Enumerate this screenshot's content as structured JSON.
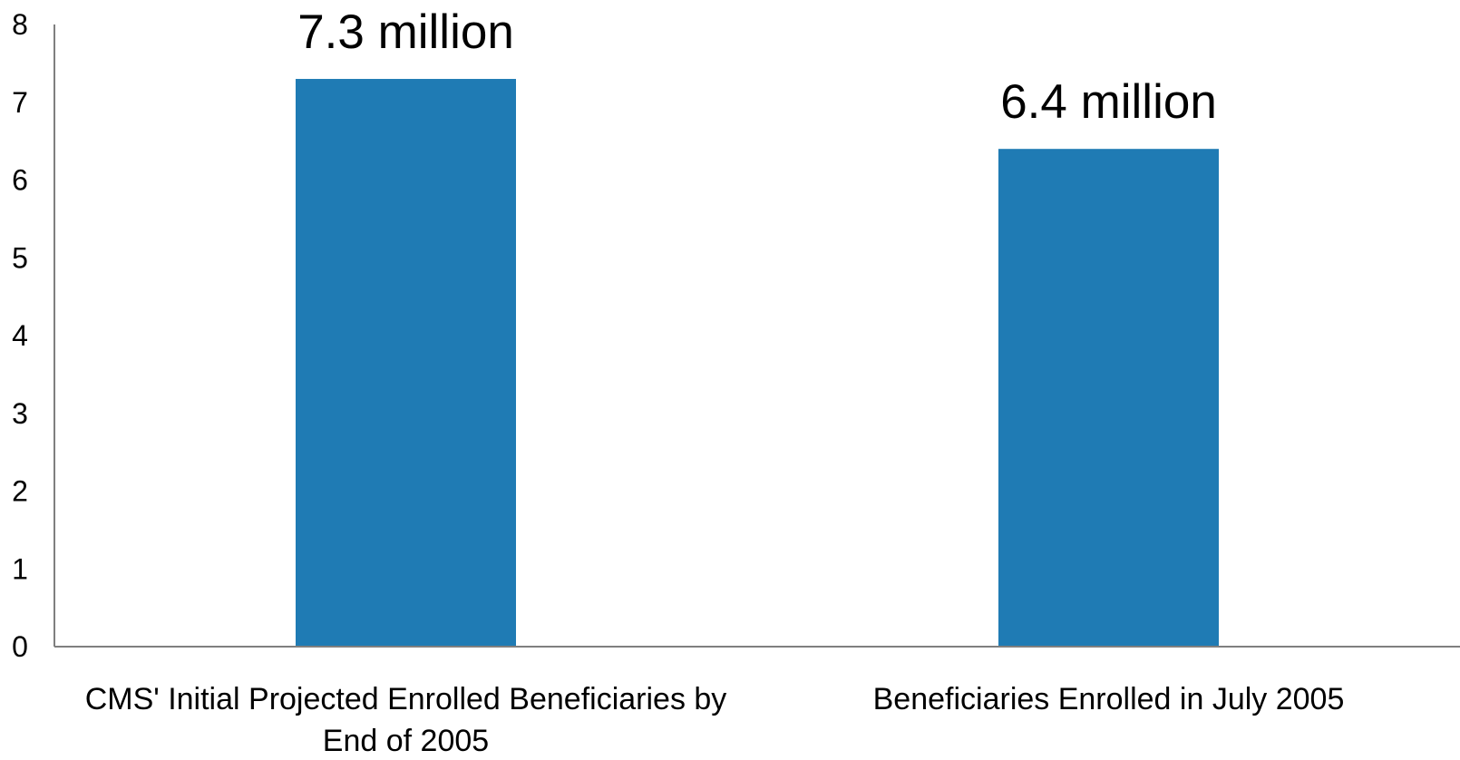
{
  "chart_data": {
    "type": "bar",
    "categories": [
      "CMS' Initial Projected Enrolled Beneficiaries by End of 2005",
      "Beneficiaries Enrolled in July 2005"
    ],
    "category_label_lines": [
      [
        "CMS' Initial Projected Enrolled Beneficiaries by",
        "End of 2005"
      ],
      [
        "Beneficiaries Enrolled in July 2005"
      ]
    ],
    "values": [
      7.3,
      6.4
    ],
    "data_labels": [
      "7.3 million",
      "6.4 million"
    ],
    "title": "",
    "xlabel": "",
    "ylabel": "",
    "ylim": [
      0,
      8
    ],
    "yticks": [
      "0",
      "1",
      "2",
      "3",
      "4",
      "5",
      "6",
      "7",
      "8"
    ],
    "grid": false,
    "legend": "none",
    "bar_color": "#1F7BB4",
    "axis_color": "#7F7F7F"
  }
}
